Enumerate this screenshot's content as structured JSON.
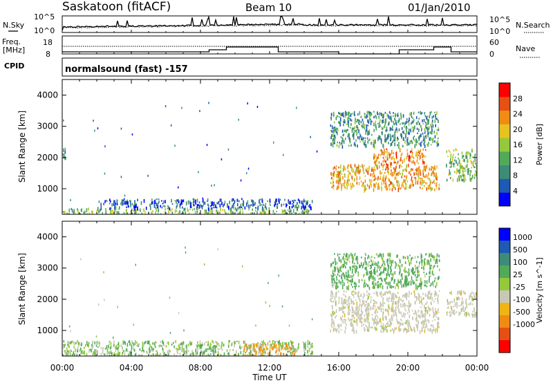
{
  "header": {
    "station": "Saskatoon (fitACF)",
    "beam": "Beam 10",
    "date": "01/Jan/2010"
  },
  "noise_panel": {
    "left_label": "N.Sky",
    "right_label": "N.Search",
    "left_ticks": [
      "10^5",
      "10^0"
    ],
    "right_ticks": [
      "10^5",
      "10^0"
    ]
  },
  "freq_panel": {
    "left_label_line1": "Freq.",
    "left_label_line2": "[MHz]",
    "right_label": "Nave",
    "left_ticks": [
      "18",
      "8"
    ],
    "right_ticks": [
      "60",
      "0"
    ]
  },
  "cpid": {
    "label": "CPID",
    "program": "normalsound (fast) -157"
  },
  "colors": {
    "power_scale": [
      "#0000ff",
      "#1e5ab4",
      "#3c8c78",
      "#50aa5a",
      "#96c83c",
      "#e6c31e",
      "#f08c14",
      "#e65014",
      "#ff0000"
    ],
    "velocity_scale": [
      "#0000ff",
      "#1e5ab4",
      "#3c8c78",
      "#50aa5a",
      "#96c83c",
      "#c8c8b4",
      "#f0b414",
      "#f08c14",
      "#e65014",
      "#ff0000"
    ]
  },
  "chart_data": [
    {
      "type": "heatmap",
      "title": "",
      "ylabel": "Slant Range [km]",
      "ylim": [
        180,
        4500
      ],
      "yticks": [
        1000,
        2000,
        3000,
        4000
      ],
      "colorbar_label": "Power [dB]",
      "colorbar_ticks": [
        4,
        8,
        12,
        16,
        20,
        24,
        28
      ],
      "crange": [
        0,
        32
      ],
      "echo_regions": [
        {
          "x": [
            0.0,
            0.2
          ],
          "y": [
            1900,
            2400
          ],
          "level": 8
        },
        {
          "x": [
            0.0,
            14.5
          ],
          "y": [
            180,
            400
          ],
          "level": 14
        },
        {
          "x": [
            2.0,
            14.5
          ],
          "y": [
            400,
            700
          ],
          "level": 6
        },
        {
          "x": [
            15.5,
            21.8
          ],
          "y": [
            1000,
            1800
          ],
          "level": 22
        },
        {
          "x": [
            18.0,
            21.0
          ],
          "y": [
            1800,
            2300
          ],
          "level": 24
        },
        {
          "x": [
            15.5,
            21.8
          ],
          "y": [
            2400,
            3500
          ],
          "level": 10
        },
        {
          "x": [
            22.2,
            24.0
          ],
          "y": [
            1300,
            2300
          ],
          "level": 14
        }
      ]
    },
    {
      "type": "heatmap",
      "title": "",
      "ylabel": "Slant Range [km]",
      "xlabel": "Time UT",
      "xlim": [
        0,
        24
      ],
      "xticks": [
        "00:00",
        "04:00",
        "08:00",
        "12:00",
        "16:00",
        "20:00",
        "00:00"
      ],
      "ylim": [
        180,
        4500
      ],
      "yticks": [
        1000,
        2000,
        3000,
        4000
      ],
      "colorbar_label": "Velocity [m s^-1]",
      "colorbar_ticks": [
        1000,
        500,
        100,
        25,
        -25,
        -100,
        -500,
        -1000
      ],
      "echo_regions": [
        {
          "x": [
            0.0,
            14.5
          ],
          "y": [
            180,
            700
          ],
          "velocity": 60
        },
        {
          "x": [
            10.5,
            13.5
          ],
          "y": [
            180,
            600
          ],
          "velocity": -80
        },
        {
          "x": [
            15.5,
            21.8
          ],
          "y": [
            1000,
            2300
          ],
          "velocity": 0
        },
        {
          "x": [
            15.5,
            21.8
          ],
          "y": [
            2400,
            3500
          ],
          "velocity": 120
        },
        {
          "x": [
            22.2,
            24.0
          ],
          "y": [
            1500,
            2300
          ],
          "velocity": 0
        }
      ]
    }
  ]
}
